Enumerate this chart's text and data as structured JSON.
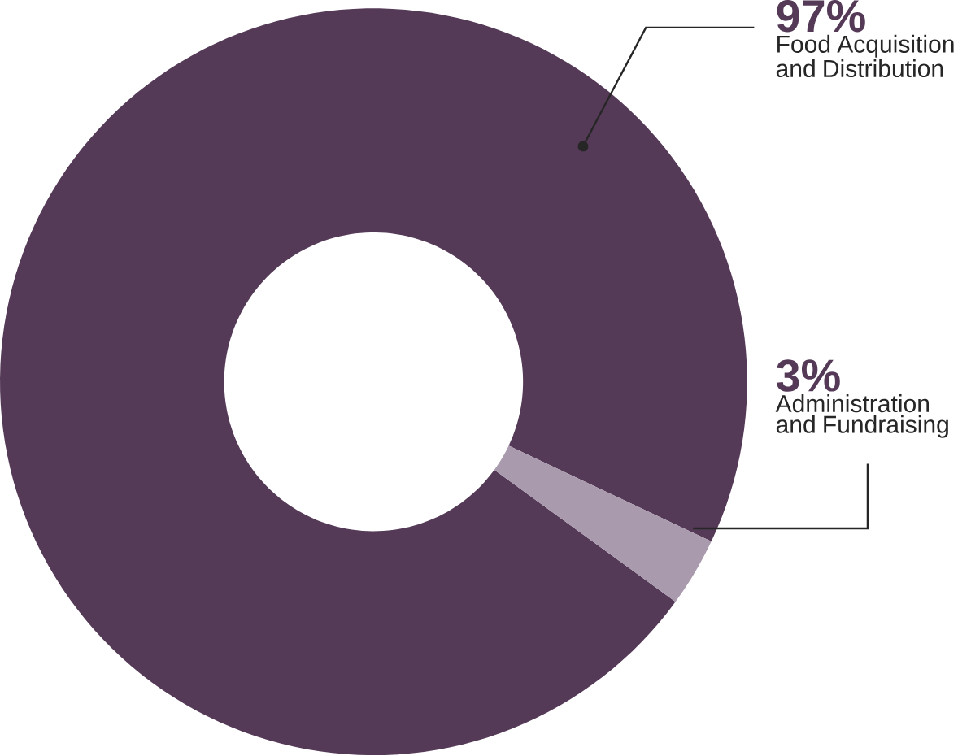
{
  "chart_data": {
    "type": "donut",
    "categories": [
      "Food Acquisition and Distribution",
      "Administration and Fundraising"
    ],
    "values": [
      97,
      3
    ],
    "colors": [
      "#553a58",
      "#a99aae"
    ],
    "value_labels": [
      "97%",
      "3%"
    ]
  }
}
